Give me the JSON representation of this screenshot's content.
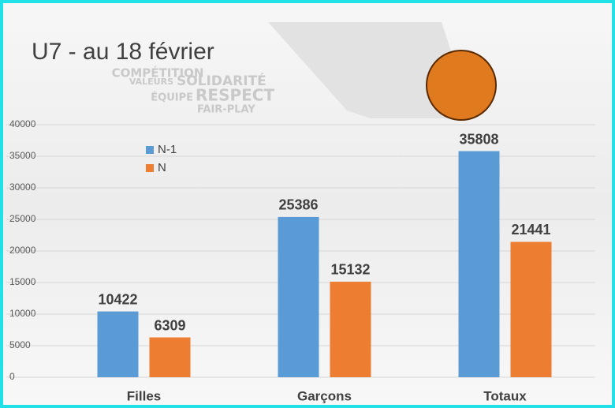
{
  "chart_data": {
    "type": "bar",
    "title": "U7 - au 18 février",
    "annotations": [
      "COMPÉTITION",
      "VALEURS",
      "SOLIDARITÉ",
      "ÉQUIPE",
      "RESPECT",
      "FAIR-PLAY"
    ],
    "categories": [
      "Filles",
      "Garçons",
      "Totaux"
    ],
    "series": [
      {
        "name": "N-1",
        "color": "#5b9bd5",
        "values": [
          10422,
          25386,
          35808
        ]
      },
      {
        "name": "N",
        "color": "#ed7d31",
        "values": [
          6309,
          15132,
          21441
        ]
      }
    ],
    "ylim": [
      0,
      40000
    ],
    "yticks": [
      0,
      5000,
      10000,
      15000,
      20000,
      25000,
      30000,
      35000,
      40000
    ],
    "grid": true,
    "legend": "top-left"
  }
}
